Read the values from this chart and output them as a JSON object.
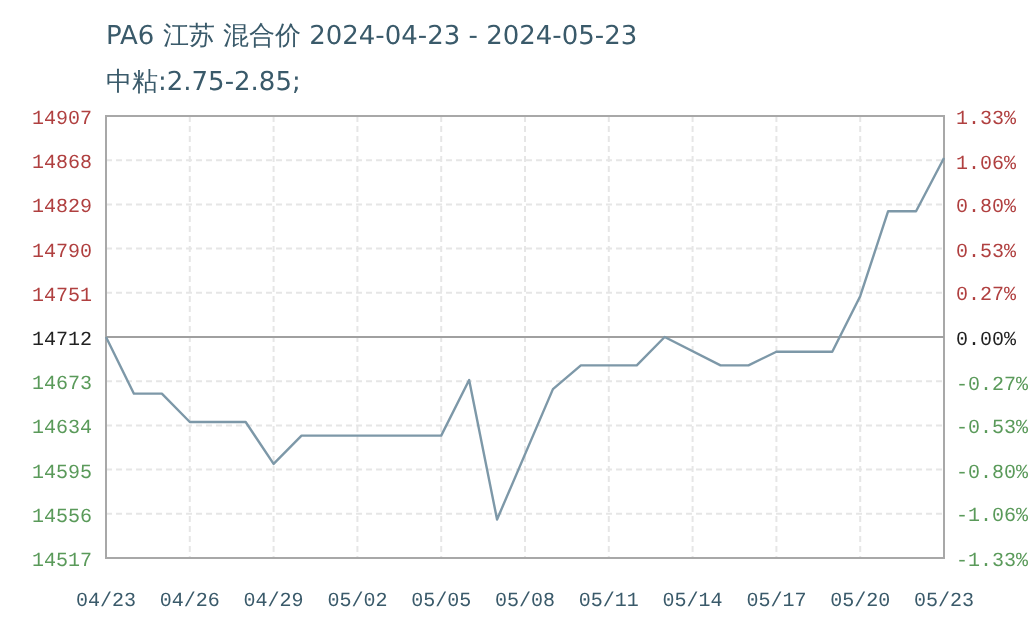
{
  "chart_data": {
    "type": "line",
    "title": "PA6 江苏 混合价 2024-04-23 - 2024-05-23",
    "subtitle": "中粘:2.75-2.85;",
    "x": [
      "2024-04-23",
      "2024-04-24",
      "2024-04-25",
      "2024-04-26",
      "2024-04-28",
      "2024-04-29",
      "2024-04-30",
      "2024-05-05",
      "2024-05-06",
      "2024-05-07",
      "2024-05-09",
      "2024-05-10",
      "2024-05-12",
      "2024-05-13",
      "2024-05-15",
      "2024-05-16",
      "2024-05-17",
      "2024-05-19",
      "2024-05-20",
      "2024-05-21",
      "2024-05-22",
      "2024-05-23"
    ],
    "series": [
      {
        "color": "#7d98a8",
        "values": [
          14712,
          14662,
          14662,
          14637,
          14637,
          14600,
          14625,
          14625,
          14674,
          14551,
          14666,
          14687,
          14687,
          14712,
          14687,
          14687,
          14699,
          14699,
          14748,
          14823,
          14823,
          14870
        ]
      }
    ],
    "xlim": [
      "2024-04-23",
      "2024-05-23"
    ],
    "xticks": [
      {
        "value": "2024-04-23",
        "label": "04/23"
      },
      {
        "value": "2024-04-26",
        "label": "04/26"
      },
      {
        "value": "2024-04-29",
        "label": "04/29"
      },
      {
        "value": "2024-05-02",
        "label": "05/02"
      },
      {
        "value": "2024-05-05",
        "label": "05/05"
      },
      {
        "value": "2024-05-08",
        "label": "05/08"
      },
      {
        "value": "2024-05-11",
        "label": "05/11"
      },
      {
        "value": "2024-05-14",
        "label": "05/14"
      },
      {
        "value": "2024-05-17",
        "label": "05/17"
      },
      {
        "value": "2024-05-20",
        "label": "05/20"
      },
      {
        "value": "2024-05-23",
        "label": "05/23"
      }
    ],
    "ylim": [
      14517,
      14907
    ],
    "yticks": [
      14517,
      14556,
      14595,
      14634,
      14673,
      14712,
      14751,
      14790,
      14829,
      14868,
      14907
    ],
    "y2lim": [
      -1.33,
      1.33
    ],
    "y2ticks": [
      {
        "value": -1.33,
        "label": "-1.33%"
      },
      {
        "value": -1.06,
        "label": "-1.06%"
      },
      {
        "value": -0.8,
        "label": "-0.80%"
      },
      {
        "value": -0.53,
        "label": "-0.53%"
      },
      {
        "value": -0.27,
        "label": "-0.27%"
      },
      {
        "value": 0,
        "label": "0.00%"
      },
      {
        "value": 0.27,
        "label": "0.27%"
      },
      {
        "value": 0.53,
        "label": "0.53%"
      },
      {
        "value": 0.8,
        "label": "0.80%"
      },
      {
        "value": 1.06,
        "label": "1.06%"
      },
      {
        "value": 1.33,
        "label": "1.33%"
      }
    ],
    "ref_lines": [
      {
        "axis": "y",
        "value": 14712,
        "color": "#a0a0a0"
      }
    ],
    "grid": true,
    "marker": "none",
    "line_style": "solid"
  }
}
